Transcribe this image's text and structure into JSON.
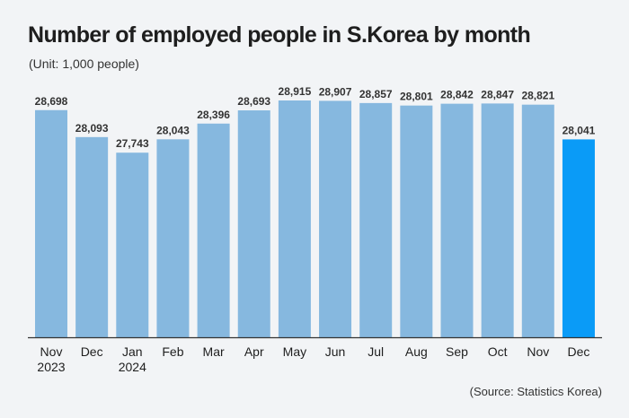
{
  "chart_data": {
    "type": "bar",
    "title": "Number of employed people in S.Korea by month",
    "subtitle": "(Unit: 1,000 people)",
    "source": "(Source: Statistics Korea)",
    "categories": [
      "Nov 2023",
      "Dec",
      "Jan 2024",
      "Feb",
      "Mar",
      "Apr",
      "May",
      "Jun",
      "Jul",
      "Aug",
      "Sep",
      "Oct",
      "Nov",
      "Dec"
    ],
    "tick_lines": [
      [
        "Nov",
        "2023"
      ],
      [
        "Dec"
      ],
      [
        "Jan",
        "2024"
      ],
      [
        "Feb"
      ],
      [
        "Mar"
      ],
      [
        "Apr"
      ],
      [
        "May"
      ],
      [
        "Jun"
      ],
      [
        "Jul"
      ],
      [
        "Aug"
      ],
      [
        "Sep"
      ],
      [
        "Oct"
      ],
      [
        "Nov"
      ],
      [
        "Dec"
      ]
    ],
    "values": [
      28698,
      28093,
      27743,
      28043,
      28396,
      28693,
      28915,
      28907,
      28857,
      28801,
      28842,
      28847,
      28821,
      28041
    ],
    "value_labels": [
      "28,698",
      "28,093",
      "27,743",
      "28,043",
      "28,396",
      "28,693",
      "28,915",
      "28,907",
      "28,857",
      "28,801",
      "28,842",
      "28,847",
      "28,821",
      "28,041"
    ],
    "highlight_index": 13,
    "xlabel": "",
    "ylabel": "",
    "ylim": [
      23600,
      28915
    ],
    "grid": false,
    "legend": "none",
    "colors": {
      "bar": "#86b8df",
      "highlight": "#0a9bf7",
      "axis": "#333333"
    }
  }
}
